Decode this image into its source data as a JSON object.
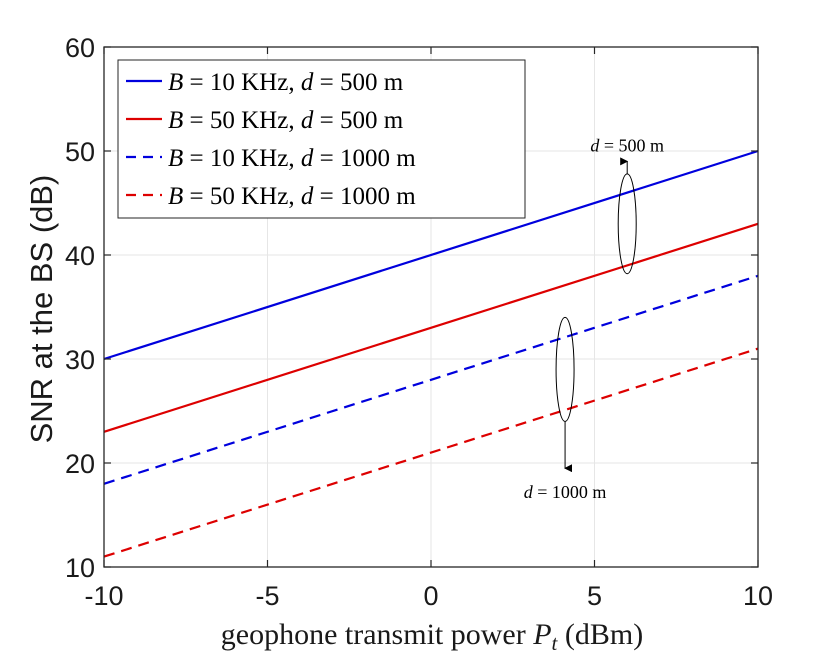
{
  "chart_data": {
    "type": "line",
    "title": "",
    "xlabel": "geophone transmit power P_t (dBm)",
    "xlabel_main": "geophone transmit power ",
    "xlabel_var": "P",
    "xlabel_sub": "t",
    "xlabel_unit": " (dBm)",
    "ylabel": "SNR at the BS (dB)",
    "xlim": [
      -10,
      10
    ],
    "ylim": [
      10,
      60
    ],
    "xticks": [
      -10,
      -5,
      0,
      5,
      10
    ],
    "xtick_labels": [
      "-10",
      "-5",
      "0",
      "5",
      "10"
    ],
    "yticks": [
      10,
      20,
      30,
      40,
      50,
      60
    ],
    "ytick_labels": [
      "10",
      "20",
      "30",
      "40",
      "50",
      "60"
    ],
    "grid": true,
    "legend_position": "top-left",
    "series": [
      {
        "name": "B = 10 KHz, d = 500 m",
        "B": "10",
        "d": "500",
        "color": "#0000dd",
        "dash": "solid",
        "x": [
          -10,
          10
        ],
        "y": [
          30,
          50
        ]
      },
      {
        "name": "B = 50 KHz, d = 500 m",
        "B": "50",
        "d": "500",
        "color": "#dd0000",
        "dash": "solid",
        "x": [
          -10,
          10
        ],
        "y": [
          23,
          43
        ]
      },
      {
        "name": "B = 10 KHz, d = 1000 m",
        "B": "10",
        "d": "1000",
        "color": "#0000dd",
        "dash": "dashed",
        "x": [
          -10,
          10
        ],
        "y": [
          18,
          38
        ]
      },
      {
        "name": "B = 50 KHz, d = 1000 m",
        "B": "50",
        "d": "1000",
        "color": "#dd0000",
        "dash": "dashed",
        "x": [
          -10,
          10
        ],
        "y": [
          11,
          31
        ]
      }
    ],
    "annotations": [
      {
        "text": "d = 500 m",
        "var": "d",
        "rest": " = 500 m",
        "ellipse_center": [
          6,
          43
        ],
        "ellipse_ry_data": 4.8,
        "arrow_to": [
          6,
          49
        ]
      },
      {
        "text": "d = 1000 m",
        "var": "d",
        "rest": " = 1000 m",
        "ellipse_center": [
          4.1,
          29
        ],
        "ellipse_ry_data": 5,
        "arrow_to": [
          4.1,
          19.5
        ]
      }
    ]
  }
}
